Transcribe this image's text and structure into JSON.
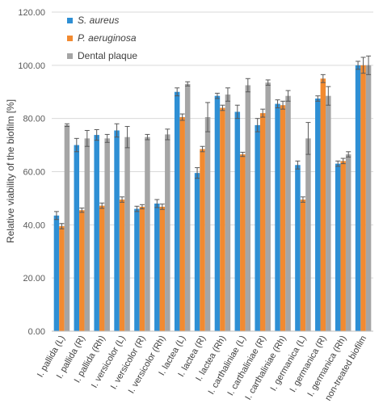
{
  "chart_data": {
    "type": "bar",
    "ylabel": "Relative viability of the biofilm [%]",
    "ylim": [
      0,
      120
    ],
    "yticks": [
      "0.00",
      "20.00",
      "40.00",
      "60.00",
      "80.00",
      "100.00",
      "120.00"
    ],
    "grid": true,
    "legend_position": "top-left",
    "categories": [
      "I. pallida (L)",
      "I. pallida (R)",
      "I. pallida (Rh)",
      "I. versicolor (L)",
      "I. versicolor (R)",
      "I. versicolor (Rh)",
      "I. lactea (L)",
      "I. lactea (R)",
      "I. lactea (Rh)",
      "I. carthaliniae (L)",
      "I. carthaliniae (R)",
      "I. carthaliniae (Rh)",
      "I. germanica (L)",
      "I. germanica (R)",
      "I. germanica (Rh)",
      "non-treated biofilm"
    ],
    "series": [
      {
        "name": "S. aureus",
        "color": "#2e8fd4",
        "values": [
          43.5,
          70.0,
          73.8,
          75.5,
          46.0,
          48.0,
          90.0,
          59.5,
          88.5,
          82.5,
          77.5,
          85.5,
          62.5,
          87.5,
          63.0,
          100.0
        ],
        "errors": [
          1.5,
          2.5,
          2.0,
          2.5,
          1.0,
          1.5,
          1.5,
          2.0,
          1.0,
          2.5,
          2.5,
          1.5,
          1.5,
          1.0,
          1.0,
          1.5
        ]
      },
      {
        "name": "P. aeruginosa",
        "color": "#f28a30",
        "values": [
          39.5,
          45.5,
          47.2,
          49.5,
          46.8,
          46.8,
          80.5,
          68.5,
          84.0,
          66.5,
          82.0,
          85.0,
          49.5,
          95.0,
          64.0,
          100.0
        ],
        "errors": [
          1.0,
          0.8,
          1.0,
          1.0,
          0.8,
          1.0,
          1.2,
          1.0,
          1.0,
          0.8,
          1.5,
          1.5,
          1.0,
          1.5,
          1.0,
          3.0
        ]
      },
      {
        "name": "Dental plaque",
        "color": "#a5a5a5",
        "values": [
          77.5,
          72.5,
          72.5,
          73.0,
          73.0,
          74.0,
          93.0,
          80.5,
          89.0,
          92.5,
          93.5,
          88.5,
          72.5,
          88.5,
          66.5,
          100.0
        ],
        "errors": [
          0.5,
          3.0,
          1.5,
          4.0,
          1.0,
          2.0,
          0.8,
          5.5,
          2.5,
          2.5,
          1.0,
          2.0,
          6.0,
          3.5,
          1.0,
          3.5
        ]
      }
    ]
  }
}
